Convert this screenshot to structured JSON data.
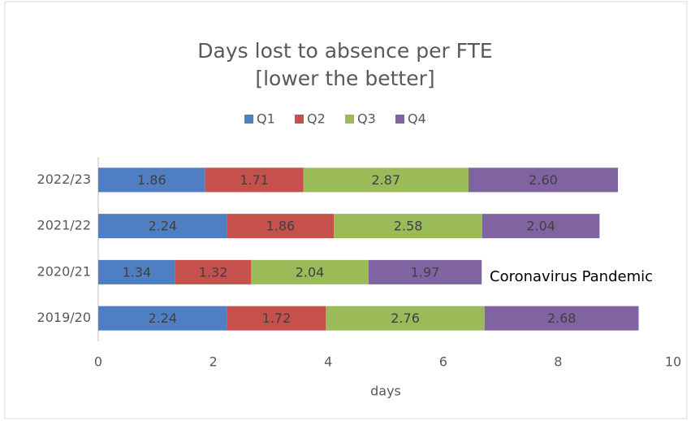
{
  "chart_data": {
    "type": "stacked-barh",
    "title": [
      "Days lost to absence per FTE",
      "[lower the better]"
    ],
    "categories": [
      "2022/23",
      "2021/22",
      "2020/21",
      "2019/20"
    ],
    "series": [
      {
        "name": "Q1",
        "color": "#4f7fc2",
        "values": [
          1.86,
          2.24,
          1.34,
          2.24
        ],
        "value_labels": [
          "1.86",
          "2.24",
          "1.34",
          "2.24"
        ]
      },
      {
        "name": "Q2",
        "color": "#c5504c",
        "values": [
          1.71,
          1.86,
          1.32,
          1.72
        ],
        "value_labels": [
          "1.71",
          "1.86",
          "1.32",
          "1.72"
        ]
      },
      {
        "name": "Q3",
        "color": "#9bbb59",
        "values": [
          2.87,
          2.58,
          2.04,
          2.76
        ],
        "value_labels": [
          "2.87",
          "2.58",
          "2.04",
          "2.76"
        ]
      },
      {
        "name": "Q4",
        "color": "#8064a2",
        "values": [
          2.6,
          2.04,
          1.97,
          2.68
        ],
        "value_labels": [
          "2.60",
          "2.04",
          "1.97",
          "2.68"
        ]
      }
    ],
    "xlabel": "days",
    "xlim": [
      0,
      10
    ],
    "xticks": [
      0,
      2,
      4,
      6,
      8,
      10
    ],
    "grid": false,
    "legend": "top",
    "annotation": "Coronavirus Pandemic"
  }
}
